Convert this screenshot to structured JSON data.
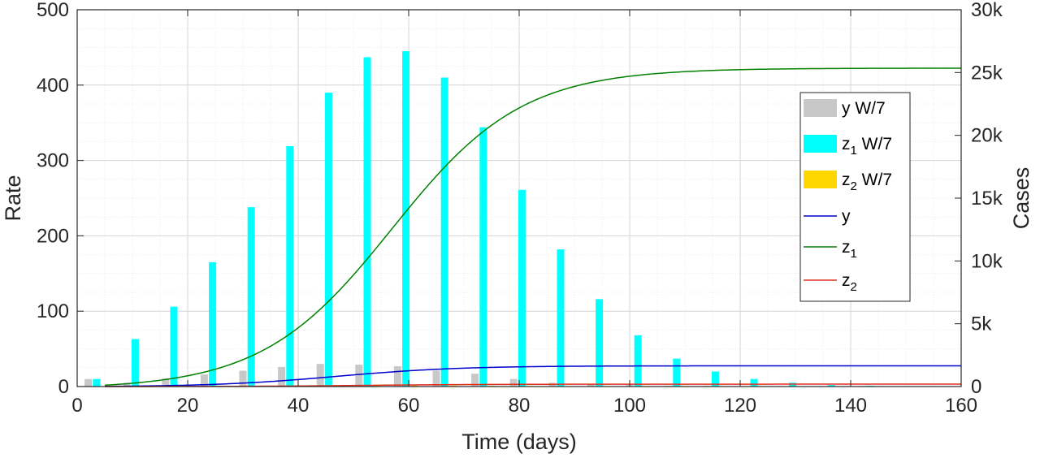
{
  "chart_data": {
    "type": "bar+line",
    "title": "",
    "xlabel": "Time (days)",
    "ylabel_left": "Rate",
    "ylabel_right": "Cases",
    "xlim": [
      0,
      160
    ],
    "ylim_left": [
      0,
      500
    ],
    "ylim_right": [
      0,
      30000
    ],
    "x_ticks": [
      "0",
      "20",
      "40",
      "60",
      "80",
      "100",
      "120",
      "140",
      "160"
    ],
    "y_left_ticks": [
      "0",
      "100",
      "200",
      "300",
      "400",
      "500"
    ],
    "y_right_ticks": [
      "0",
      "5k",
      "10k",
      "15k",
      "20k",
      "25k",
      "30k"
    ],
    "grid": true,
    "legend_position": "right",
    "colors": {
      "y_bar": "#c8c8c8",
      "z1_bar": "#00ffff",
      "z2_bar": "#ffd700",
      "y_line": "#0000cc",
      "z1_line": "#008000",
      "z2_line": "#e03020"
    },
    "bar_series": [
      {
        "name": "y W/7",
        "weeks_x": [
          2,
          9,
          16,
          23,
          30,
          37,
          44,
          51,
          58,
          65,
          72,
          79,
          86,
          93,
          100,
          107,
          114,
          121,
          128,
          135,
          142
        ],
        "values": [
          10,
          5,
          11,
          16,
          21,
          26,
          30,
          29,
          27,
          21,
          17,
          10,
          5,
          3,
          2,
          1,
          1,
          0.5,
          0.3,
          0.2,
          0.1
        ]
      },
      {
        "name": "z1 W/7",
        "weeks_x": [
          3.5,
          10.5,
          17.5,
          24.5,
          31.5,
          38.5,
          45.5,
          52.5,
          59.5,
          66.5,
          73.5,
          80.5,
          87.5,
          94.5,
          101.5,
          108.5,
          115.5,
          122.5,
          129.5,
          136.5,
          143.5
        ],
        "values": [
          10,
          63,
          106,
          165,
          238,
          319,
          390,
          437,
          445,
          410,
          344,
          261,
          182,
          116,
          68,
          37,
          20,
          10,
          5,
          2,
          1
        ]
      },
      {
        "name": "z2 W/7",
        "weeks_x": [
          5,
          12,
          19,
          26,
          33,
          40,
          47,
          54,
          61,
          68,
          75,
          82,
          89,
          96,
          103,
          110,
          117,
          124,
          131,
          138,
          145
        ],
        "values": [
          0,
          0.2,
          0.4,
          0.6,
          0.9,
          1.1,
          1.3,
          1.4,
          1.4,
          1.2,
          1.0,
          0.7,
          0.4,
          0.2,
          0.1,
          0.1,
          0,
          0,
          0,
          0,
          0
        ]
      }
    ],
    "line_series": [
      {
        "name": "y",
        "final_cases": 1650,
        "midpoint_day": 47,
        "steepness": 0.09
      },
      {
        "name": "z1",
        "final_cases": 25350,
        "midpoint_day": 57,
        "steepness": 0.085
      },
      {
        "name": "z2",
        "final_cases": 190,
        "midpoint_day": 52,
        "steepness": 0.09
      }
    ],
    "legend": {
      "entries": [
        {
          "kind": "bar",
          "base": "y",
          "sub": "",
          "suffix": " W/7",
          "color_key": "y_bar"
        },
        {
          "kind": "bar",
          "base": "z",
          "sub": "1",
          "suffix": " W/7",
          "color_key": "z1_bar"
        },
        {
          "kind": "bar",
          "base": "z",
          "sub": "2",
          "suffix": " W/7",
          "color_key": "z2_bar"
        },
        {
          "kind": "line",
          "base": "y",
          "sub": "",
          "suffix": "",
          "color_key": "y_line"
        },
        {
          "kind": "line",
          "base": "z",
          "sub": "1",
          "suffix": "",
          "color_key": "z1_line"
        },
        {
          "kind": "line",
          "base": "z",
          "sub": "2",
          "suffix": "",
          "color_key": "z2_line"
        }
      ]
    }
  }
}
